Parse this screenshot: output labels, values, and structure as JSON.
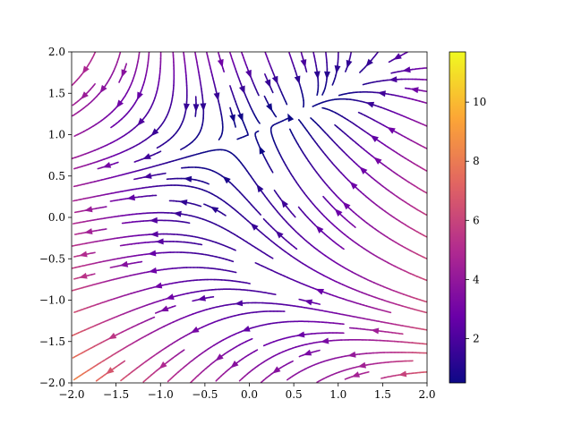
{
  "chart_data": {
    "type": "streamplot",
    "title": "",
    "xlabel": "",
    "ylabel": "",
    "xlim": [
      -2.0,
      2.0
    ],
    "ylim": [
      -2.0,
      2.0
    ],
    "x_ticks": [
      -2.0,
      -1.5,
      -1.0,
      -0.5,
      0.0,
      0.5,
      1.0,
      1.5,
      2.0
    ],
    "y_ticks": [
      -2.0,
      -1.5,
      -1.0,
      -0.5,
      0.0,
      0.5,
      1.0,
      1.5,
      2.0
    ],
    "x_tick_labels": [
      "−2.0",
      "−1.5",
      "−1.0",
      "−0.5",
      "0.0",
      "0.5",
      "1.0",
      "1.5",
      "2.0"
    ],
    "y_tick_labels": [
      "−2.0",
      "−1.5",
      "−1.0",
      "−0.5",
      "0.0",
      "0.5",
      "1.0",
      "1.5",
      "2.0"
    ],
    "grid": false,
    "field": {
      "u": "-1 - x^2 + y",
      "v": "1 + x - y^2"
    },
    "colormap": "plasma",
    "colormap_stops": [
      "#0d0887",
      "#6a00a8",
      "#b12a90",
      "#e16462",
      "#fca636",
      "#f0f921"
    ],
    "color_by": "speed",
    "colorbar": {
      "min": 0.5,
      "max": 11.7,
      "ticks": [
        2,
        4,
        6,
        8,
        10
      ],
      "tick_labels": [
        "2",
        "4",
        "6",
        "8",
        "10"
      ]
    }
  }
}
